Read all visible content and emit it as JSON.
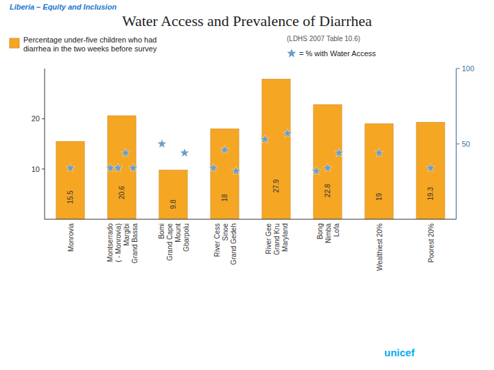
{
  "chart_data": {
    "type": "bar",
    "title": "Water Access and Prevalence of Diarrhea",
    "subtitle": "Liberia – Equity and Inclusion",
    "annotations": [
      "(LDHS 2007  Table 10.6)",
      "unicef"
    ],
    "categories": [
      "Monrovia",
      "Montserrado\n( - Monrovia)\nMargibi\nGrand Bassa",
      "Bomi\nGrand Cape\nMount\nGbarpolu",
      "River Cess\nSinoe\nGrand Gedeh",
      "River Gee\nGrand Kru\nMaryland",
      "Bong\nNimba\nLofa",
      "Wealthiest 20%",
      "Poorest 20%"
    ],
    "series": [
      {
        "name": "Percentage under-five children who had\ndiarrhea in the two weeks before survey",
        "type": "bar",
        "color": "#f5a623",
        "data_labels": true,
        "values": [
          15.5,
          20.6,
          9.8,
          18.0,
          27.9,
          22.8,
          19.0,
          19.3
        ]
      },
      {
        "name": "= % with Water Access",
        "type": "scatter",
        "marker": "star",
        "color": "#6d9dc5",
        "axis": "y2",
        "values": [
          [
            34
          ],
          [
            34,
            34,
            44,
            34
          ],
          [
            50,
            44
          ],
          [
            34,
            46,
            32
          ],
          [
            53,
            57
          ],
          [
            32,
            34,
            44
          ],
          [
            44
          ],
          [
            34
          ]
        ]
      }
    ],
    "ylim": [
      0,
      30
    ],
    "yticks": [
      10,
      20
    ],
    "y2lim": [
      0,
      100
    ],
    "y2ticks": [
      50,
      100
    ],
    "legend": "top",
    "grid": false
  }
}
